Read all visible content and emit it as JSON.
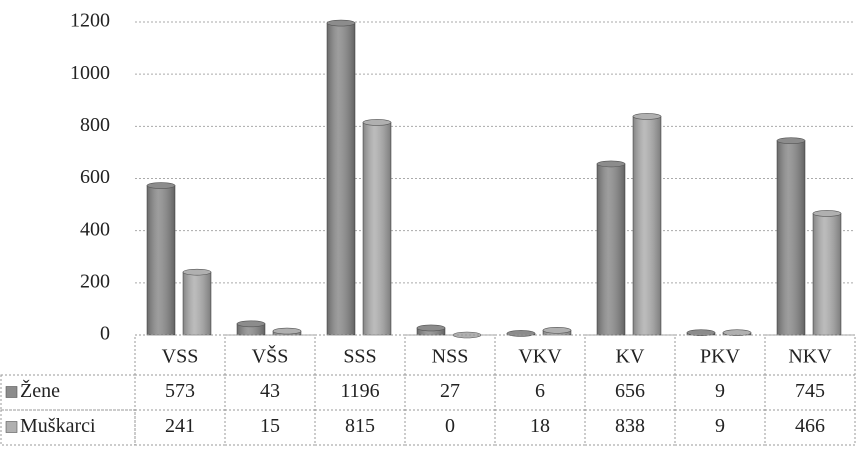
{
  "chart_data": {
    "type": "bar",
    "categories": [
      "VSS",
      "VŠS",
      "SSS",
      "NSS",
      "VKV",
      "KV",
      "PKV",
      "NKV"
    ],
    "series": [
      {
        "name": "Žene",
        "color": "#8c8c8c",
        "values": [
          573,
          43,
          1196,
          27,
          6,
          656,
          9,
          745
        ]
      },
      {
        "name": "Muškarci",
        "color": "#b0b0b0",
        "values": [
          241,
          15,
          815,
          0,
          18,
          838,
          9,
          466
        ]
      }
    ],
    "ylim": [
      0,
      1200
    ],
    "yticks": [
      0,
      200,
      400,
      600,
      800,
      1000,
      1200
    ],
    "grid": true,
    "data_table": true
  }
}
